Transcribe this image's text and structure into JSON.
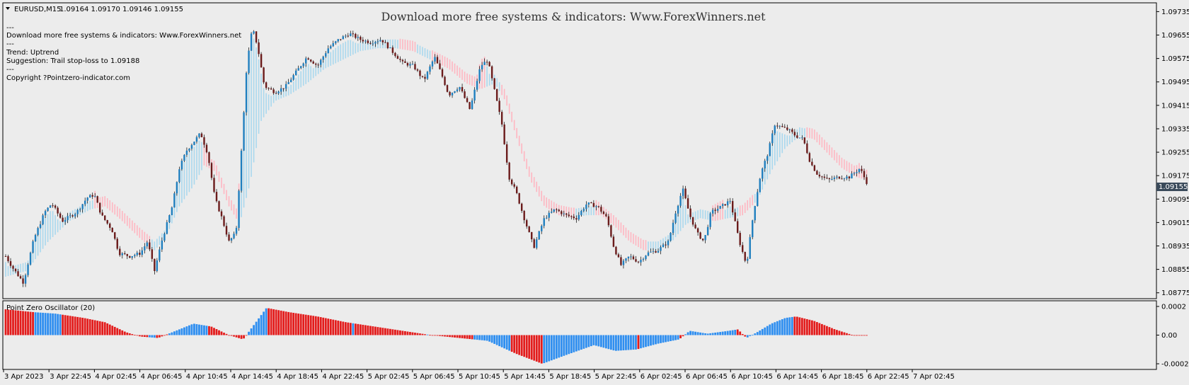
{
  "symbol_header": {
    "symbol": "EURUSD,M15",
    "ohlc": "1.09164 1.09170 1.09146 1.09155"
  },
  "banner": "Download more free systems & indicators: Www.ForexWinners.net",
  "info_lines": [
    "---",
    "Download more free systems & indicators: Www.ForexWinners.net",
    "---",
    "Trend: Uptrend",
    "Suggestion: Trail stop-loss to 1.09188",
    "---",
    "Copyright ?Pointzero-indicator.com"
  ],
  "oscillator_title": "Point Zero Oscillator (20)",
  "price_axis": [
    "1.09735",
    "1.09655",
    "1.09575",
    "1.09495",
    "1.09415",
    "1.09335",
    "1.09255",
    "1.09175",
    "1.09095",
    "1.09015",
    "1.08935",
    "1.08855",
    "1.08775"
  ],
  "current_price": "1.09155",
  "oscillator_axis": [
    "0.0002",
    "0.00",
    "-0.0002"
  ],
  "time_axis": [
    "3 Apr 2023",
    "3 Apr 22:45",
    "4 Apr 02:45",
    "4 Apr 06:45",
    "4 Apr 10:45",
    "4 Apr 14:45",
    "4 Apr 18:45",
    "4 Apr 22:45",
    "5 Apr 02:45",
    "5 Apr 06:45",
    "5 Apr 10:45",
    "5 Apr 14:45",
    "5 Apr 18:45",
    "5 Apr 22:45",
    "6 Apr 02:45",
    "6 Apr 06:45",
    "6 Apr 10:45",
    "6 Apr 14:45",
    "6 Apr 18:45",
    "6 Apr 22:45",
    "7 Apr 02:45"
  ],
  "colors": {
    "bull_candle": "#1f7fbf",
    "bear_candle": "#6b1b1b",
    "uptrend_band": "#a9d8ee",
    "downtrend_band": "#ffb6c1",
    "osc_positive_up": "#2e8ef0",
    "osc_negative": "#e31b1b",
    "current_price_bg": "#3a4a5a"
  },
  "chart_data": {
    "type": "line",
    "title": "EURUSD,M15",
    "ylim": [
      1.08755,
      1.09765
    ],
    "price_path": [
      [
        0,
        1.089
      ],
      [
        10,
        1.0886
      ],
      [
        25,
        1.0881
      ],
      [
        40,
        1.0896
      ],
      [
        55,
        1.0905
      ],
      [
        65,
        1.0908
      ],
      [
        80,
        1.0902
      ],
      [
        100,
        1.0905
      ],
      [
        115,
        1.091
      ],
      [
        125,
        1.0911
      ],
      [
        135,
        1.0904
      ],
      [
        150,
        1.0899
      ],
      [
        160,
        1.0891
      ],
      [
        175,
        1.089
      ],
      [
        190,
        1.0891
      ],
      [
        200,
        1.0895
      ],
      [
        210,
        1.0885
      ],
      [
        220,
        1.0895
      ],
      [
        235,
        1.0907
      ],
      [
        245,
        1.092
      ],
      [
        255,
        1.0926
      ],
      [
        265,
        1.0929
      ],
      [
        275,
        1.0932
      ],
      [
        285,
        1.0925
      ],
      [
        295,
        1.091
      ],
      [
        305,
        1.0903
      ],
      [
        315,
        1.0895
      ],
      [
        325,
        1.0898
      ],
      [
        335,
        1.0935
      ],
      [
        340,
        1.0955
      ],
      [
        348,
        1.0968
      ],
      [
        355,
        1.0962
      ],
      [
        365,
        1.0948
      ],
      [
        380,
        1.0946
      ],
      [
        395,
        1.0948
      ],
      [
        410,
        1.0953
      ],
      [
        425,
        1.0958
      ],
      [
        440,
        1.0955
      ],
      [
        455,
        1.0961
      ],
      [
        470,
        1.0964
      ],
      [
        485,
        1.0966
      ],
      [
        500,
        1.0964
      ],
      [
        515,
        1.0963
      ],
      [
        530,
        1.0964
      ],
      [
        545,
        1.096
      ],
      [
        560,
        1.0956
      ],
      [
        575,
        1.0955
      ],
      [
        590,
        1.095
      ],
      [
        605,
        1.0958
      ],
      [
        615,
        1.0952
      ],
      [
        625,
        1.0945
      ],
      [
        640,
        1.0948
      ],
      [
        655,
        1.094
      ],
      [
        670,
        1.0955
      ],
      [
        680,
        1.0957
      ],
      [
        690,
        1.0946
      ],
      [
        700,
        1.0935
      ],
      [
        710,
        1.0917
      ],
      [
        720,
        1.0912
      ],
      [
        730,
        1.0904
      ],
      [
        745,
        1.0893
      ],
      [
        760,
        1.0903
      ],
      [
        775,
        1.0906
      ],
      [
        790,
        1.0904
      ],
      [
        805,
        1.0903
      ],
      [
        820,
        1.0908
      ],
      [
        835,
        1.0907
      ],
      [
        848,
        1.0903
      ],
      [
        858,
        1.0893
      ],
      [
        868,
        1.0887
      ],
      [
        880,
        1.089
      ],
      [
        893,
        1.0888
      ],
      [
        905,
        1.0891
      ],
      [
        920,
        1.0892
      ],
      [
        935,
        1.0895
      ],
      [
        945,
        1.0905
      ],
      [
        955,
        1.0913
      ],
      [
        965,
        1.0904
      ],
      [
        975,
        1.0898
      ],
      [
        985,
        1.0895
      ],
      [
        995,
        1.0905
      ],
      [
        1010,
        1.0907
      ],
      [
        1022,
        1.0909
      ],
      [
        1035,
        1.0895
      ],
      [
        1045,
        1.0887
      ],
      [
        1055,
        1.0905
      ],
      [
        1065,
        1.0918
      ],
      [
        1075,
        1.0925
      ],
      [
        1085,
        1.0935
      ],
      [
        1095,
        1.0934
      ],
      [
        1105,
        1.0933
      ],
      [
        1115,
        1.0931
      ],
      [
        1125,
        1.093
      ],
      [
        1135,
        1.0922
      ],
      [
        1145,
        1.0918
      ],
      [
        1160,
        1.0916
      ],
      [
        1175,
        1.0917
      ],
      [
        1190,
        1.0917
      ],
      [
        1205,
        1.092
      ],
      [
        1215,
        1.0915
      ]
    ],
    "band_path": [
      [
        0,
        1.0884
      ],
      [
        30,
        1.0886
      ],
      [
        60,
        1.0896
      ],
      [
        90,
        1.0903
      ],
      [
        120,
        1.0907
      ],
      [
        140,
        1.0908
      ],
      [
        160,
        1.0904
      ],
      [
        190,
        1.0897
      ],
      [
        210,
        1.0893
      ],
      [
        225,
        1.0897
      ],
      [
        245,
        1.0908
      ],
      [
        265,
        1.0915
      ],
      [
        280,
        1.0922
      ],
      [
        295,
        1.092
      ],
      [
        315,
        1.0908
      ],
      [
        330,
        1.0902
      ],
      [
        345,
        1.0916
      ],
      [
        360,
        1.0937
      ],
      [
        380,
        1.0944
      ],
      [
        400,
        1.0946
      ],
      [
        425,
        1.095
      ],
      [
        450,
        1.0955
      ],
      [
        475,
        1.0958
      ],
      [
        500,
        1.0961
      ],
      [
        525,
        1.0962
      ],
      [
        550,
        1.0962
      ],
      [
        575,
        1.0961
      ],
      [
        600,
        1.0958
      ],
      [
        625,
        1.0955
      ],
      [
        650,
        1.095
      ],
      [
        670,
        1.0948
      ],
      [
        690,
        1.095
      ],
      [
        705,
        1.0944
      ],
      [
        720,
        1.0932
      ],
      [
        740,
        1.0917
      ],
      [
        760,
        1.0908
      ],
      [
        780,
        1.0905
      ],
      [
        800,
        1.0904
      ],
      [
        820,
        1.0905
      ],
      [
        840,
        1.0905
      ],
      [
        860,
        1.0901
      ],
      [
        880,
        1.0896
      ],
      [
        900,
        1.0893
      ],
      [
        920,
        1.0893
      ],
      [
        940,
        1.0896
      ],
      [
        960,
        1.0902
      ],
      [
        980,
        1.0904
      ],
      [
        1000,
        1.0903
      ],
      [
        1020,
        1.0904
      ],
      [
        1040,
        1.0905
      ],
      [
        1060,
        1.091
      ],
      [
        1080,
        1.092
      ],
      [
        1100,
        1.0928
      ],
      [
        1120,
        1.0932
      ],
      [
        1140,
        1.0931
      ],
      [
        1160,
        1.0926
      ],
      [
        1180,
        1.0921
      ],
      [
        1200,
        1.0918
      ],
      [
        1215,
        1.0917
      ]
    ],
    "band_trend": [
      [
        0,
        "up"
      ],
      [
        125,
        "down"
      ],
      [
        205,
        "up"
      ],
      [
        280,
        "down"
      ],
      [
        330,
        "up"
      ],
      [
        555,
        "down"
      ],
      [
        578,
        "up"
      ],
      [
        600,
        "down"
      ],
      [
        678,
        "up"
      ],
      [
        700,
        "down"
      ],
      [
        805,
        "up"
      ],
      [
        832,
        "down"
      ],
      [
        905,
        "up"
      ],
      [
        995,
        "down"
      ],
      [
        1015,
        "up"
      ],
      [
        1035,
        "down"
      ],
      [
        1055,
        "up"
      ],
      [
        1128,
        "down"
      ]
    ],
    "oscillator": {
      "ylim": [
        -0.0002,
        0.0002
      ],
      "values": [
        [
          0,
          0.00018
        ],
        [
          40,
          0.00016
        ],
        [
          70,
          0.00015
        ],
        [
          110,
          0.00012
        ],
        [
          140,
          9e-05
        ],
        [
          170,
          2e-05
        ],
        [
          190,
          -1e-05
        ],
        [
          215,
          -2e-05
        ],
        [
          240,
          3e-05
        ],
        [
          265,
          8e-05
        ],
        [
          290,
          6e-05
        ],
        [
          315,
          0.0
        ],
        [
          335,
          -3e-05
        ],
        [
          350,
          7e-05
        ],
        [
          368,
          0.00019
        ],
        [
          400,
          0.00016
        ],
        [
          440,
          0.00013
        ],
        [
          480,
          9e-05
        ],
        [
          520,
          6e-05
        ],
        [
          560,
          3e-05
        ],
        [
          600,
          0.0
        ],
        [
          640,
          -2e-05
        ],
        [
          680,
          -4e-05
        ],
        [
          720,
          -0.00013
        ],
        [
          757,
          -0.0002
        ],
        [
          790,
          -0.00014
        ],
        [
          830,
          -7e-05
        ],
        [
          860,
          -0.00011
        ],
        [
          890,
          -0.0001
        ],
        [
          920,
          -6e-05
        ],
        [
          950,
          -3e-05
        ],
        [
          965,
          3e-05
        ],
        [
          990,
          1e-05
        ],
        [
          1020,
          3e-05
        ],
        [
          1033,
          4e-05
        ],
        [
          1045,
          -2e-05
        ],
        [
          1060,
          2e-05
        ],
        [
          1080,
          8e-05
        ],
        [
          1100,
          0.00012
        ],
        [
          1115,
          0.00013
        ],
        [
          1140,
          0.0001
        ],
        [
          1170,
          4e-05
        ],
        [
          1195,
          0.0
        ],
        [
          1215,
          0.0
        ]
      ],
      "blue_ranges": [
        [
          40,
          80
        ],
        [
          200,
          210
        ],
        [
          230,
          285
        ],
        [
          340,
          368
        ],
        [
          487,
          492
        ],
        [
          592,
          598
        ],
        [
          660,
          712
        ],
        [
          757,
          890
        ],
        [
          893,
          950
        ],
        [
          956,
          1030
        ],
        [
          1045,
          1110
        ]
      ]
    }
  }
}
